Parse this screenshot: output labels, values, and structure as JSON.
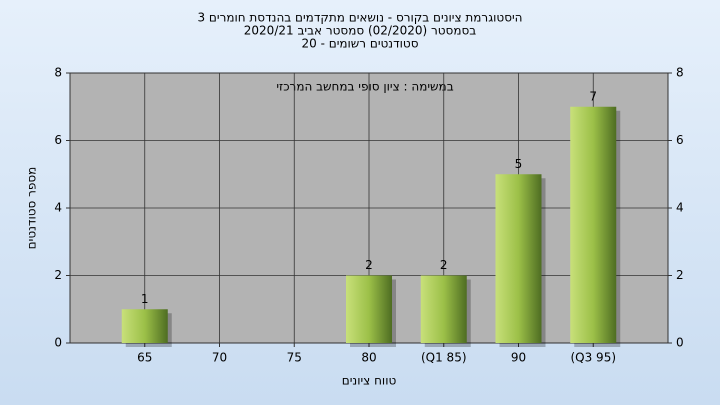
{
  "chart_data": {
    "type": "bar",
    "title": [
      "היסטוגרמת ציונים בקורס - נושאים מתקדמים בהנדסת חומרים 3",
      "בסמסטר  (02/2020)  סמסטר אביב  2020/21",
      "סטודנטים רשומים - 20"
    ],
    "annotation": "במשימה : ציון סופי במחשב המרכזי",
    "x_label": "טווח ציונים",
    "y_label": "מספר סטודנטים",
    "categories": [
      "65",
      "70",
      "75",
      "80",
      "(Q1 85)",
      "90",
      "(Q3 95)"
    ],
    "values": [
      1,
      0,
      0,
      2,
      2,
      5,
      7
    ],
    "color": "#9cc048",
    "ylim": [
      0,
      8
    ],
    "yticks": [
      0,
      2,
      4,
      6,
      8
    ],
    "y2lim": [
      0,
      8
    ],
    "y2ticks": [
      0,
      2,
      4,
      6,
      8
    ],
    "grid": true
  }
}
